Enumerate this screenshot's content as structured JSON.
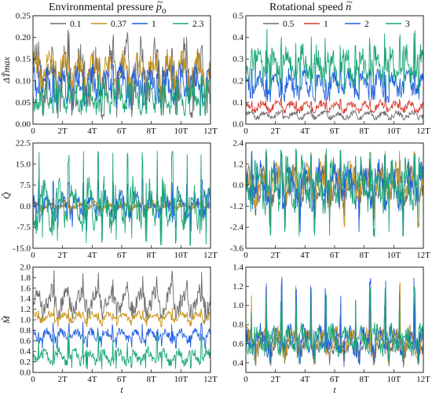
{
  "figure": {
    "left_title": "Environmental pressure",
    "left_symbol": "p",
    "left_subscript": "o",
    "right_title": "Rotational speed",
    "right_symbol": "n",
    "xlabel": "t"
  },
  "colors": {
    "gray": "#6b6b6b",
    "orange": "#c8941a",
    "blue": "#1f5fe0",
    "green": "#1aa676",
    "red": "#d63a2e"
  },
  "chart_data": [
    {
      "id": "p-dT",
      "type": "line",
      "column": "left",
      "row": 0,
      "ylabel": "ΔT̃max",
      "ylim": [
        0,
        0.25
      ],
      "yticks": [
        "0.00",
        "0.05",
        "0.10",
        "0.15",
        "0.20",
        "0.25"
      ],
      "ytick_values": [
        0,
        0.05,
        0.1,
        0.15,
        0.2,
        0.25
      ],
      "xlim": [
        0,
        12
      ],
      "xtick_labels": [
        "0",
        "2T",
        "4T",
        "6T",
        "8T",
        "10T",
        "12T"
      ],
      "legend": "top",
      "series": [
        {
          "name": "0.1",
          "color": "#6b6b6b",
          "base": 0.11,
          "amp": 0.06,
          "peak": 0.22,
          "low": 0.01
        },
        {
          "name": "0.37",
          "color": "#c8941a",
          "base": 0.12,
          "amp": 0.035,
          "peak": 0.17,
          "low": 0.05
        },
        {
          "name": "1",
          "color": "#1f5fe0",
          "base": 0.09,
          "amp": 0.035,
          "peak": 0.14,
          "low": 0.03
        },
        {
          "name": "2.3",
          "color": "#1aa676",
          "base": 0.06,
          "amp": 0.03,
          "peak": 0.12,
          "low": 0.02
        }
      ]
    },
    {
      "id": "n-dT",
      "type": "line",
      "column": "right",
      "row": 0,
      "ylim": [
        0,
        0.5
      ],
      "yticks": [
        "0.0",
        "0.1",
        "0.2",
        "0.3",
        "0.4",
        "0.5"
      ],
      "ytick_values": [
        0,
        0.1,
        0.2,
        0.3,
        0.4,
        0.5
      ],
      "xlim": [
        0,
        12
      ],
      "xtick_labels": [
        "0",
        "2T",
        "4T",
        "6T",
        "8T",
        "10T",
        "12T"
      ],
      "legend": "top",
      "series": [
        {
          "name": "0.5",
          "color": "#6b6b6b",
          "base": 0.04,
          "amp": 0.015,
          "peak": 0.07,
          "low": 0.02
        },
        {
          "name": "1",
          "color": "#d63a2e",
          "base": 0.08,
          "amp": 0.02,
          "peak": 0.12,
          "low": 0.05
        },
        {
          "name": "2",
          "color": "#1f5fe0",
          "base": 0.18,
          "amp": 0.05,
          "peak": 0.27,
          "low": 0.1
        },
        {
          "name": "3",
          "color": "#1aa676",
          "base": 0.27,
          "amp": 0.07,
          "peak": 0.44,
          "low": 0.14
        }
      ]
    },
    {
      "id": "p-Q",
      "type": "line",
      "column": "left",
      "row": 1,
      "ylabel": "Q̃",
      "ylim": [
        -15,
        22.5
      ],
      "yticks": [
        "-15.0",
        "-7.5",
        "0.0",
        "7.5",
        "15.0",
        "22.5"
      ],
      "ytick_values": [
        -15,
        -7.5,
        0,
        7.5,
        15,
        22.5
      ],
      "xlim": [
        0,
        12
      ],
      "xtick_labels": [
        "0",
        "2T",
        "4T",
        "6T",
        "8T",
        "10T",
        "12T"
      ],
      "series": [
        {
          "name": "0.1",
          "color": "#6b6b6b",
          "base": 0,
          "amp": 0.6,
          "peak": 1.5,
          "low": -1.5
        },
        {
          "name": "0.37",
          "color": "#c8941a",
          "base": 0,
          "amp": 1.5,
          "peak": 4,
          "low": -4
        },
        {
          "name": "1",
          "color": "#1f5fe0",
          "base": 0,
          "amp": 4,
          "peak": 10,
          "low": -9
        },
        {
          "name": "2.3",
          "color": "#1aa676",
          "base": 0,
          "amp": 7,
          "peak": 20,
          "low": -14
        }
      ]
    },
    {
      "id": "n-Q",
      "type": "line",
      "column": "right",
      "row": 1,
      "ylim": [
        -3.6,
        2.4
      ],
      "yticks": [
        "-3.6",
        "-2.4",
        "-1.2",
        "0.0",
        "1.2",
        "2.4"
      ],
      "ytick_values": [
        -3.6,
        -2.4,
        -1.2,
        0,
        1.2,
        2.4
      ],
      "xlim": [
        0,
        12
      ],
      "xtick_labels": [
        "0",
        "2T",
        "4T",
        "6T",
        "8T",
        "10T",
        "12T"
      ],
      "series": [
        {
          "name": "0.5",
          "color": "#6b6b6b",
          "base": 0,
          "amp": 0.8,
          "peak": 1.8,
          "low": -2.0
        },
        {
          "name": "1",
          "color": "#c8941a",
          "base": 0,
          "amp": 0.9,
          "peak": 2.0,
          "low": -2.4
        },
        {
          "name": "2",
          "color": "#1f5fe0",
          "base": 0,
          "amp": 1.0,
          "peak": 2.0,
          "low": -2.8
        },
        {
          "name": "3",
          "color": "#1aa676",
          "base": 0,
          "amp": 1.1,
          "peak": 2.1,
          "low": -3.0
        }
      ]
    },
    {
      "id": "p-M",
      "type": "line",
      "column": "left",
      "row": 2,
      "ylabel": "M̃",
      "ylim": [
        0,
        2.0
      ],
      "yticks": [
        "0.0",
        "0.2",
        "0.4",
        "0.6",
        "0.8",
        "1.0",
        "1.2",
        "1.4",
        "1.6",
        "1.8",
        "2.0"
      ],
      "ytick_values": [
        0,
        0.2,
        0.4,
        0.6,
        0.8,
        1.0,
        1.2,
        1.4,
        1.6,
        1.8,
        2.0
      ],
      "xlim": [
        0,
        12
      ],
      "xtick_labels": [
        "0",
        "2T",
        "4T",
        "6T",
        "8T",
        "10T",
        "12T"
      ],
      "xlabel": "t",
      "series": [
        {
          "name": "0.1",
          "color": "#6b6b6b",
          "base": 1.35,
          "amp": 0.22,
          "peak": 1.95,
          "low": 0.95
        },
        {
          "name": "0.37",
          "color": "#c8941a",
          "base": 1.05,
          "amp": 0.08,
          "peak": 1.25,
          "low": 0.85
        },
        {
          "name": "1",
          "color": "#1f5fe0",
          "base": 0.7,
          "amp": 0.1,
          "peak": 1.0,
          "low": 0.45
        },
        {
          "name": "2.3",
          "color": "#1aa676",
          "base": 0.3,
          "amp": 0.12,
          "peak": 0.75,
          "low": 0.05
        }
      ]
    },
    {
      "id": "n-M",
      "type": "line",
      "column": "right",
      "row": 2,
      "ylim": [
        0.3,
        1.4
      ],
      "yticks": [
        "0.4",
        "0.6",
        "0.8",
        "1.0",
        "1.2",
        "1.4"
      ],
      "ytick_values": [
        0.4,
        0.6,
        0.8,
        1.0,
        1.2,
        1.4
      ],
      "xlim": [
        0,
        12
      ],
      "xtick_labels": [
        "0",
        "2T",
        "4T",
        "6T",
        "8T",
        "10T",
        "12T"
      ],
      "xlabel": "t",
      "series": [
        {
          "name": "0.5",
          "color": "#6b6b6b",
          "base": 0.6,
          "amp": 0.1,
          "peak": 1.0,
          "low": 0.35
        },
        {
          "name": "1",
          "color": "#c8941a",
          "base": 0.62,
          "amp": 0.12,
          "peak": 1.25,
          "low": 0.38
        },
        {
          "name": "2",
          "color": "#1f5fe0",
          "base": 0.63,
          "amp": 0.12,
          "peak": 1.3,
          "low": 0.38
        },
        {
          "name": "3",
          "color": "#1aa676",
          "base": 0.64,
          "amp": 0.12,
          "peak": 1.2,
          "low": 0.38
        }
      ]
    }
  ]
}
